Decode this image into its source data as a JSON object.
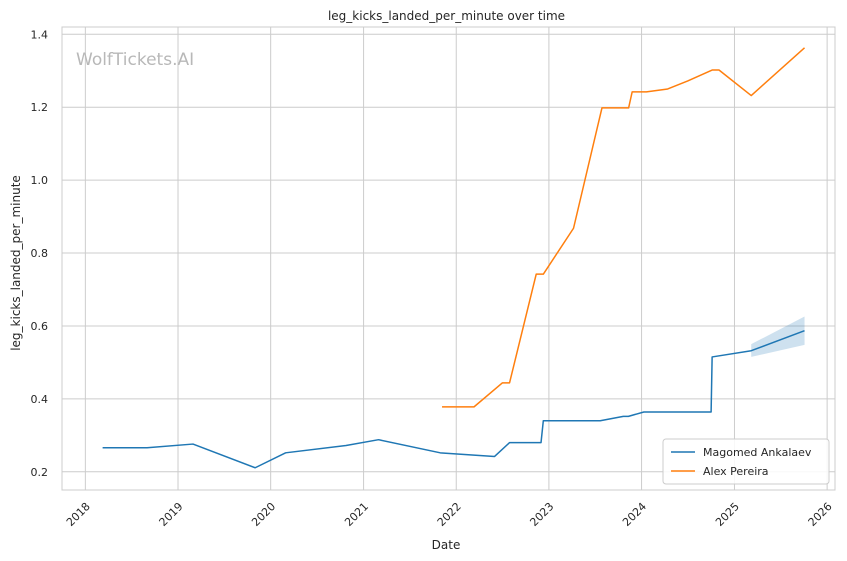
{
  "chart_data": {
    "type": "line",
    "title": "leg_kicks_landed_per_minute over time",
    "xlabel": "Date",
    "ylabel": "leg_kicks_landed_per_minute",
    "watermark": "WolfTickets.AI",
    "xlim": [
      "2017-10-01",
      "2026-02-01"
    ],
    "ylim": [
      0.15,
      1.42
    ],
    "x_ticks": [
      "2018",
      "2019",
      "2020",
      "2021",
      "2022",
      "2023",
      "2024",
      "2025",
      "2026"
    ],
    "y_ticks": [
      "0.2",
      "0.4",
      "0.6",
      "0.8",
      "1.0",
      "1.2",
      "1.4"
    ],
    "grid": true,
    "legend_position": "lower-right",
    "series": [
      {
        "name": "Magomed Ankalaev",
        "color": "#1f77b4",
        "points": [
          [
            "2018-03-10",
            0.266
          ],
          [
            "2018-09-01",
            0.266
          ],
          [
            "2019-03-01",
            0.276
          ],
          [
            "2019-11-01",
            0.211
          ],
          [
            "2020-02-29",
            0.252
          ],
          [
            "2020-10-24",
            0.272
          ],
          [
            "2021-03-01",
            0.288
          ],
          [
            "2021-10-30",
            0.252
          ],
          [
            "2022-06-01",
            0.242
          ],
          [
            "2022-07-30",
            0.28
          ],
          [
            "2022-12-01",
            0.28
          ],
          [
            "2022-12-10",
            0.34
          ],
          [
            "2023-07-22",
            0.34
          ],
          [
            "2023-10-21",
            0.352
          ],
          [
            "2023-11-10",
            0.352
          ],
          [
            "2024-01-10",
            0.364
          ],
          [
            "2024-10-01",
            0.364
          ],
          [
            "2024-10-05",
            0.515
          ],
          [
            "2025-03-08",
            0.532
          ],
          [
            "2025-10-04",
            0.587
          ]
        ],
        "band": [
          [
            "2025-03-08",
            0.515,
            0.55
          ],
          [
            "2025-10-04",
            0.548,
            0.626
          ]
        ]
      },
      {
        "name": "Alex Pereira",
        "color": "#ff7f0e",
        "points": [
          [
            "2021-11-06",
            0.378
          ],
          [
            "2022-03-12",
            0.378
          ],
          [
            "2022-07-02",
            0.444
          ],
          [
            "2022-07-30",
            0.444
          ],
          [
            "2022-11-12",
            0.742
          ],
          [
            "2022-12-10",
            0.742
          ],
          [
            "2023-04-08",
            0.868
          ],
          [
            "2023-07-29",
            1.198
          ],
          [
            "2023-11-11",
            1.198
          ],
          [
            "2023-11-25",
            1.242
          ],
          [
            "2024-01-20",
            1.242
          ],
          [
            "2024-04-13",
            1.25
          ],
          [
            "2024-07-01",
            1.272
          ],
          [
            "2024-10-05",
            1.302
          ],
          [
            "2024-11-01",
            1.302
          ],
          [
            "2025-03-08",
            1.232
          ],
          [
            "2025-10-04",
            1.363
          ]
        ]
      }
    ]
  }
}
